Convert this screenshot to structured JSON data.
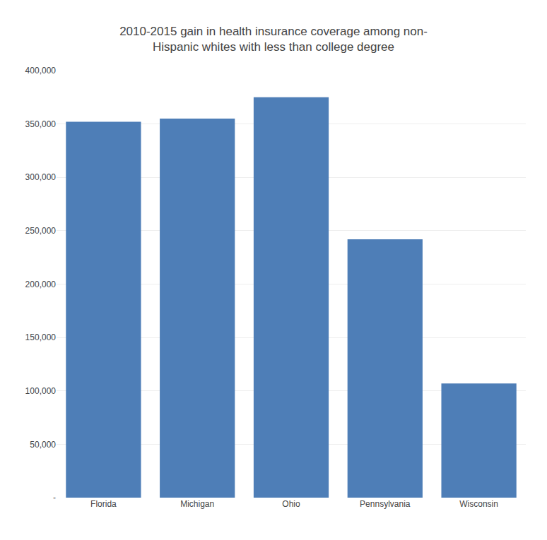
{
  "chart_data": {
    "type": "bar",
    "title": "2010-2015 gain in health insurance coverage among non-\nHispanic whites with less than college degree",
    "categories": [
      "Florida",
      "Michigan",
      "Ohio",
      "Pennsylvania",
      "Wisconsin"
    ],
    "values": [
      352000,
      355000,
      375000,
      242000,
      107000
    ],
    "color": "#4e7eb7",
    "ylim": [
      0,
      400000
    ],
    "yticks": [
      {
        "value": 0,
        "label": "-"
      },
      {
        "value": 50000,
        "label": "50,000"
      },
      {
        "value": 100000,
        "label": "100,000"
      },
      {
        "value": 150000,
        "label": "150,000"
      },
      {
        "value": 200000,
        "label": "200,000"
      },
      {
        "value": 250000,
        "label": "250,000"
      },
      {
        "value": 300000,
        "label": "300,000"
      },
      {
        "value": 350000,
        "label": "350,000"
      },
      {
        "value": 400000,
        "label": "400,000"
      }
    ],
    "grid": true
  }
}
